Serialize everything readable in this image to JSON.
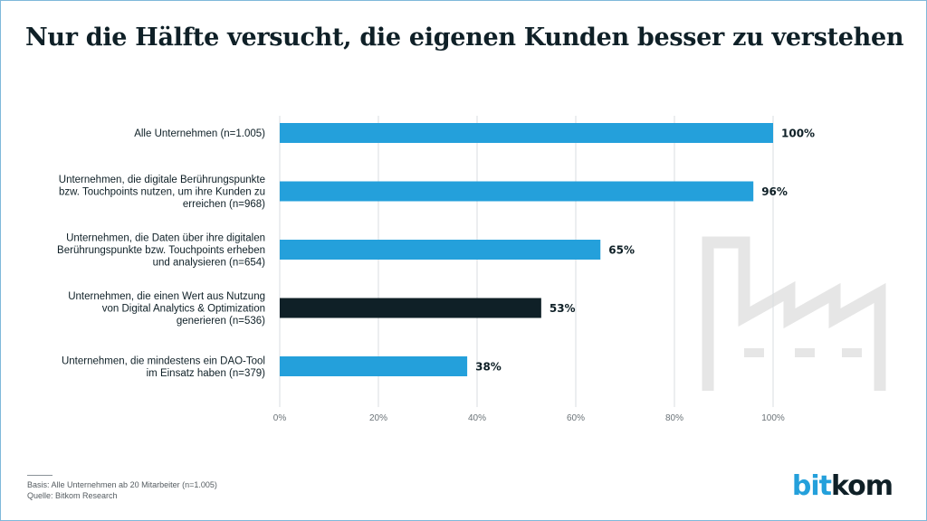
{
  "title": "Nur die Hälfte versucht, die eigenen Kunden besser zu verstehen",
  "footer": {
    "basis": "Basis: Alle Unternehmen ab 20 Mitarbeiter (n=1.005)",
    "source": "Quelle: Bitkom Research"
  },
  "logo": {
    "part1": "bit",
    "part2": "kom"
  },
  "colors": {
    "bar": "#24a0db",
    "highlight": "#0f2027",
    "text": "#0f2027",
    "grid": "#d9dde0",
    "icon": "#e6e6e6"
  },
  "chart_data": {
    "type": "bar",
    "orientation": "horizontal",
    "categories": [
      [
        "Alle Unternehmen (n=1.005)"
      ],
      [
        "Unternehmen, die digitale Berührungspunkte",
        "bzw. Touchpoints nutzen, um ihre Kunden zu",
        "erreichen (n=968)"
      ],
      [
        "Unternehmen, die Daten über ihre digitalen",
        "Berührungspunkte bzw. Touchpoints erheben",
        "und analysieren (n=654)"
      ],
      [
        "Unternehmen, die einen Wert aus Nutzung",
        "von Digital Analytics & Optimization",
        "generieren (n=536)"
      ],
      [
        "Unternehmen, die mindestens ein DAO-Tool",
        "im Einsatz haben (n=379)"
      ]
    ],
    "values": [
      100,
      96,
      65,
      53,
      38
    ],
    "value_labels": [
      "100%",
      "96%",
      "65%",
      "53%",
      "38%"
    ],
    "highlight_index": 3,
    "xlim": [
      0,
      100
    ],
    "xticks": [
      0,
      20,
      40,
      60,
      80,
      100
    ],
    "xtick_labels": [
      "0%",
      "20%",
      "40%",
      "60%",
      "80%",
      "100%"
    ],
    "grid": true
  }
}
